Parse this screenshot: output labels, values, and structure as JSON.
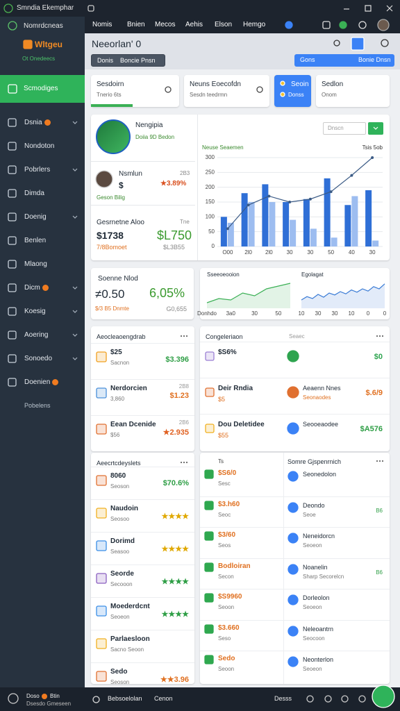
{
  "titlebar": {
    "title": "Smndia Ekemphar"
  },
  "sidebar": {
    "brand": "Nomrdcneas",
    "logo": "Wltgeu",
    "status": "Ot Onedeecs",
    "active": "Scmodiges",
    "items": [
      {
        "label": "Dsnia",
        "badge": true,
        "chevron": true
      },
      {
        "label": "Nondoton",
        "badge": false,
        "chevron": false
      },
      {
        "label": "Pobrlers",
        "badge": false,
        "chevron": true
      },
      {
        "label": "Dimda",
        "badge": false,
        "chevron": false
      },
      {
        "label": "Doenig",
        "badge": false,
        "chevron": true
      },
      {
        "label": "Benlen",
        "badge": false,
        "chevron": false
      },
      {
        "label": "Mlaong",
        "badge": false,
        "chevron": false
      },
      {
        "label": "Dicm",
        "badge": true,
        "chevron": true
      },
      {
        "label": "Koesig",
        "badge": false,
        "chevron": true
      },
      {
        "label": "Aoering",
        "badge": false,
        "chevron": true
      },
      {
        "label": "Sonoedo",
        "badge": false,
        "chevron": true
      },
      {
        "label": "Doenien",
        "badge": true,
        "chevron": false
      }
    ],
    "footer_item": "Pobelens"
  },
  "topnav": {
    "links": [
      "Nomis",
      "Bnien",
      "Mecos",
      "Aehis",
      "Elson",
      "Hemgo"
    ]
  },
  "header": {
    "title": "Neeorlan' 0",
    "buttons": [
      "Donis",
      "Boncie Pnsn"
    ],
    "right_buttons": [
      "Gons",
      "Bonie Dnsn"
    ]
  },
  "cards": [
    {
      "title": "Sesdoirn",
      "sub": "Tnerio 6ts"
    },
    {
      "title": "Neuns Eoecofdn",
      "sub": "Sesdn teedrmn"
    },
    {
      "title": "Seoin",
      "sub": "Donss"
    },
    {
      "title": "Sedlon",
      "sub": "Onom"
    }
  ],
  "profile": {
    "name": "Nengipia",
    "tags": "Doiia 9D  Bedon",
    "user": "Nsmlun",
    "user_value": "$",
    "user_change": "★3.89%",
    "user_meta": "2B3",
    "user_sub": "Geson Bilig",
    "section": "Gesrnetne Aloo",
    "section_meta": "Tne",
    "amount": "$1738",
    "amount_sub": "7/8Bomoet",
    "big": "$L750",
    "big_sub": "$L3B55",
    "search": "Dnscn"
  },
  "stat": {
    "title": "Soenne Nlod",
    "value": "≠0.50",
    "pct": "6,05%",
    "sub": "$/3 B5 Dnmte",
    "sub_right": "G0,655"
  },
  "chart_data": [
    {
      "type": "bar",
      "title": "Neuse Seaemen",
      "subtitle": "Tsis 5ob",
      "categories": [
        "O00",
        "2l0",
        "2l0",
        "30",
        "30",
        "50",
        "40",
        "30"
      ],
      "series": [
        {
          "color": "#2f6fd6",
          "values": [
            100,
            180,
            210,
            150,
            160,
            230,
            140,
            190
          ]
        },
        {
          "color": "#9dbdf0",
          "values": [
            80,
            150,
            150,
            90,
            60,
            30,
            170,
            20
          ]
        },
        {
          "type": "line",
          "color": "#3b5b86",
          "values": [
            60,
            140,
            170,
            150,
            160,
            185,
            240,
            300
          ]
        }
      ],
      "ylim": [
        0,
        300
      ],
      "yticks": [
        0,
        50,
        100,
        150,
        200,
        250,
        300
      ],
      "grid": true
    },
    {
      "type": "area",
      "title": "Sseeoeooion",
      "categories": [
        "Donhdo",
        null,
        "3a0",
        null,
        "30",
        null,
        "50",
        null
      ],
      "values": [
        20,
        35,
        30,
        55,
        45,
        70,
        80,
        90
      ],
      "color": "#3bb055",
      "ylim": [
        0,
        100
      ]
    },
    {
      "type": "area",
      "title": "Egolagat",
      "categories": [
        "10",
        null,
        null,
        "30",
        null,
        null,
        "30",
        null,
        null,
        "10",
        null,
        null,
        "0",
        null,
        null,
        "0"
      ],
      "values": [
        30,
        42,
        35,
        50,
        40,
        55,
        48,
        60,
        52,
        66,
        58,
        70,
        62,
        78,
        70,
        88
      ],
      "color": "#3a7bd5",
      "ylim": [
        0,
        100
      ]
    }
  ],
  "left_lists": [
    {
      "title": "Aeocleaoengdrab",
      "rows": [
        {
          "top": "$25",
          "bottom": "Sacnon",
          "value": "$3.396",
          "color": "#2e9e45",
          "icon_color": "#f0a020"
        },
        {
          "top": "Nerdorcien",
          "bottom": "3,860",
          "meta": "2B8",
          "value": "$1.23",
          "color": "#e07020",
          "icon_color": "#4a90d9"
        },
        {
          "top": "Eean Dcenide",
          "bottom": "$56",
          "meta": "2B6",
          "value": "★2.935",
          "color": "#e06020",
          "icon_color": "#e07030"
        }
      ]
    },
    {
      "title": "Aeecrtcdeyslets",
      "rows": [
        {
          "top": "8060",
          "bottom": "Seoson",
          "value": "$70.6%",
          "color": "#2e9e45",
          "icon_color": "#e07030"
        },
        {
          "top": "Naudoin",
          "bottom": "Seosoo",
          "value": "★★★★",
          "color": "#e0a800",
          "icon_color": "#f0b020"
        },
        {
          "top": "Dorimd",
          "bottom": "Seasoo",
          "value": "★★★★",
          "color": "#e0a800",
          "icon_color": "#3a8ee6"
        },
        {
          "top": "Seorde",
          "bottom": "Secooon",
          "value": "★★★★",
          "color": "#2e9e45",
          "icon_color": "#8a5fc0"
        },
        {
          "top": "Moederdcnt",
          "bottom": "Seoeon",
          "value": "★★★★",
          "color": "#2e9e45",
          "icon_color": "#3a8ee6"
        },
        {
          "top": "Parlaesloon",
          "bottom": "Sacno Seoon",
          "icon_color": "#f0b020"
        },
        {
          "top": "Sedo",
          "bottom": "Seoson",
          "value": "★★3.96",
          "color": "#e07020",
          "icon_color": "#e07030"
        }
      ]
    }
  ],
  "right_top": {
    "title": "Congeleriaon",
    "meta": "Seaec",
    "rows": [
      {
        "top": "$S6%",
        "status_color": "#2ea44f",
        "value": "$0",
        "color": "#2ea44f",
        "icon_color": "#9b7fd4"
      },
      {
        "top": "Deir Rndia",
        "bottom": "$5",
        "status_color": "#e07030",
        "text": "Aeaenn Nnes",
        "text_sub": "Seonaodes",
        "value": "$.6/9",
        "color": "#e07020",
        "icon_color": "#e07030"
      },
      {
        "top": "Dou Deletidee",
        "bottom": "$55",
        "status_color": "#3b82f6",
        "text": "Seooeaodee",
        "value": "$A576",
        "color": "#2e9e45",
        "icon_color": "#f0b020"
      }
    ]
  },
  "right_bottom": {
    "title": "Somre Gjspenrnich",
    "left_label": "Ts",
    "rows": [
      {
        "amount": "$S6/0",
        "amount_sub": "Sesc",
        "name": "Seonedolon"
      },
      {
        "amount": "$3.h60",
        "amount_sub": "Seoc",
        "name": "Deondo",
        "name_sub": "Seoe",
        "meta": "B6"
      },
      {
        "amount": "$3/60",
        "amount_sub": "Seos",
        "name": "Neneidorcn",
        "name_sub": "Seoeon"
      },
      {
        "amount": "Bodloiran",
        "amount_sub": "Secon",
        "name": "Noanelin",
        "name_sub": "Sharp Secorelcn",
        "meta": "B6"
      },
      {
        "amount": "$S9960",
        "amount_sub": "Seoon",
        "name": "Dorleolon",
        "name_sub": "Seoeon"
      },
      {
        "amount": "$3.660",
        "amount_sub": "Seso",
        "name": "Neleoantrn",
        "name_sub": "Seocoon"
      },
      {
        "amount": "Sedo",
        "amount_sub": "Seoon",
        "name": "Neonterlon",
        "name_sub": "Seoeon"
      }
    ]
  },
  "bottombar": {
    "left_title": "Doso",
    "left_tag": "Btin",
    "left_sub": "Dsesdo Gmeseen",
    "search": "Bebsoelolan",
    "tab": "Cenon",
    "right": "Desss"
  }
}
